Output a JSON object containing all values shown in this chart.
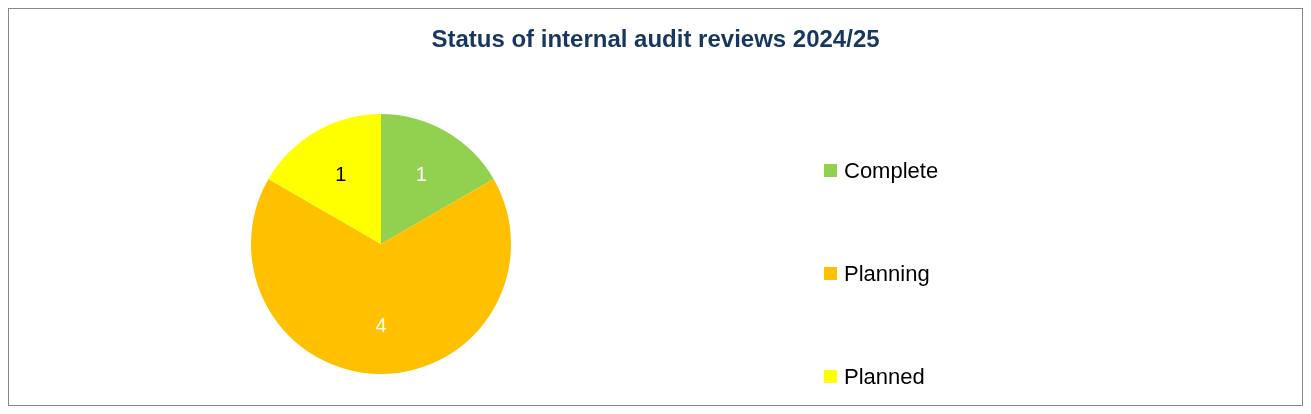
{
  "chart_data": {
    "type": "pie",
    "title": "Status of internal audit reviews 2024/25",
    "categories": [
      "Complete",
      "Planning",
      "Planned"
    ],
    "values": [
      1,
      4,
      1
    ],
    "colors": [
      "#92d050",
      "#ffc000",
      "#ffff00"
    ],
    "data_labels": true,
    "legend": "right"
  }
}
